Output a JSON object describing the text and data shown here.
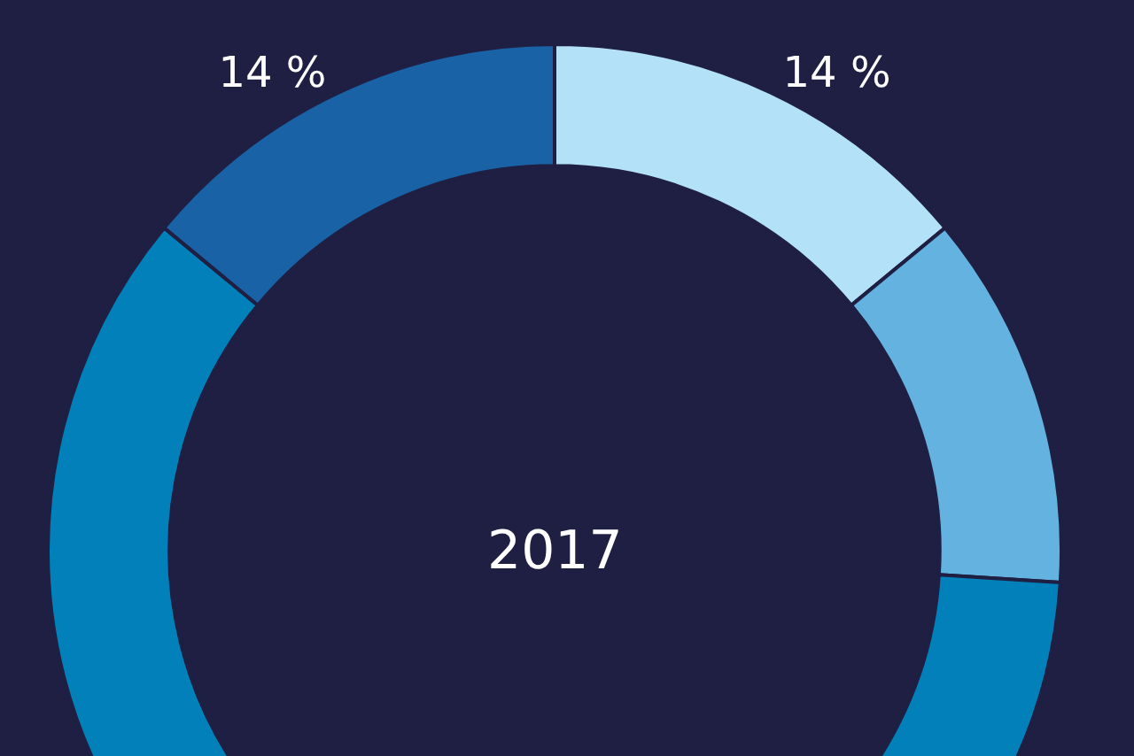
{
  "chart_data": {
    "type": "donut",
    "title": "2017",
    "categories": [
      null,
      null,
      null,
      null,
      null
    ],
    "values": [
      14,
      12,
      30,
      30,
      14
    ],
    "colors": [
      "#b3e1f7",
      "#64b2e0",
      "#0280b9",
      "#0280b9",
      "#1a62a6"
    ],
    "value_labels": [
      "14 %",
      null,
      null,
      null,
      "14 %"
    ],
    "legend": false
  }
}
